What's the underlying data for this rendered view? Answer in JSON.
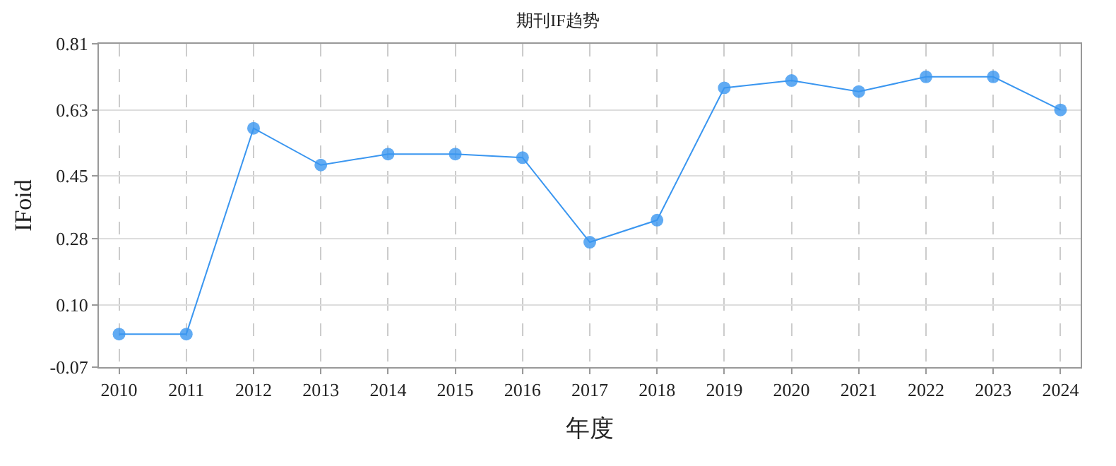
{
  "chart_data": {
    "type": "line",
    "title": "期刊IF趋势",
    "xlabel": "年度",
    "ylabel": "IFoid",
    "categories": [
      "2010",
      "2011",
      "2012",
      "2013",
      "2014",
      "2015",
      "2016",
      "2017",
      "2018",
      "2019",
      "2020",
      "2021",
      "2022",
      "2023",
      "2024"
    ],
    "series": [
      {
        "color": "#3a96f0",
        "values": [
          0.02,
          0.02,
          0.58,
          0.48,
          0.51,
          0.51,
          0.5,
          0.27,
          0.33,
          0.69,
          0.71,
          0.68,
          0.72,
          0.72,
          0.63
        ]
      }
    ],
    "ylim": [
      -0.07,
      0.81
    ],
    "yticks": [
      -0.07,
      {
        "value": 0.1,
        "label": "0.10"
      },
      0.28,
      0.45,
      0.63,
      0.81
    ],
    "grid": true,
    "marker": "circle",
    "line_style": "solid"
  }
}
